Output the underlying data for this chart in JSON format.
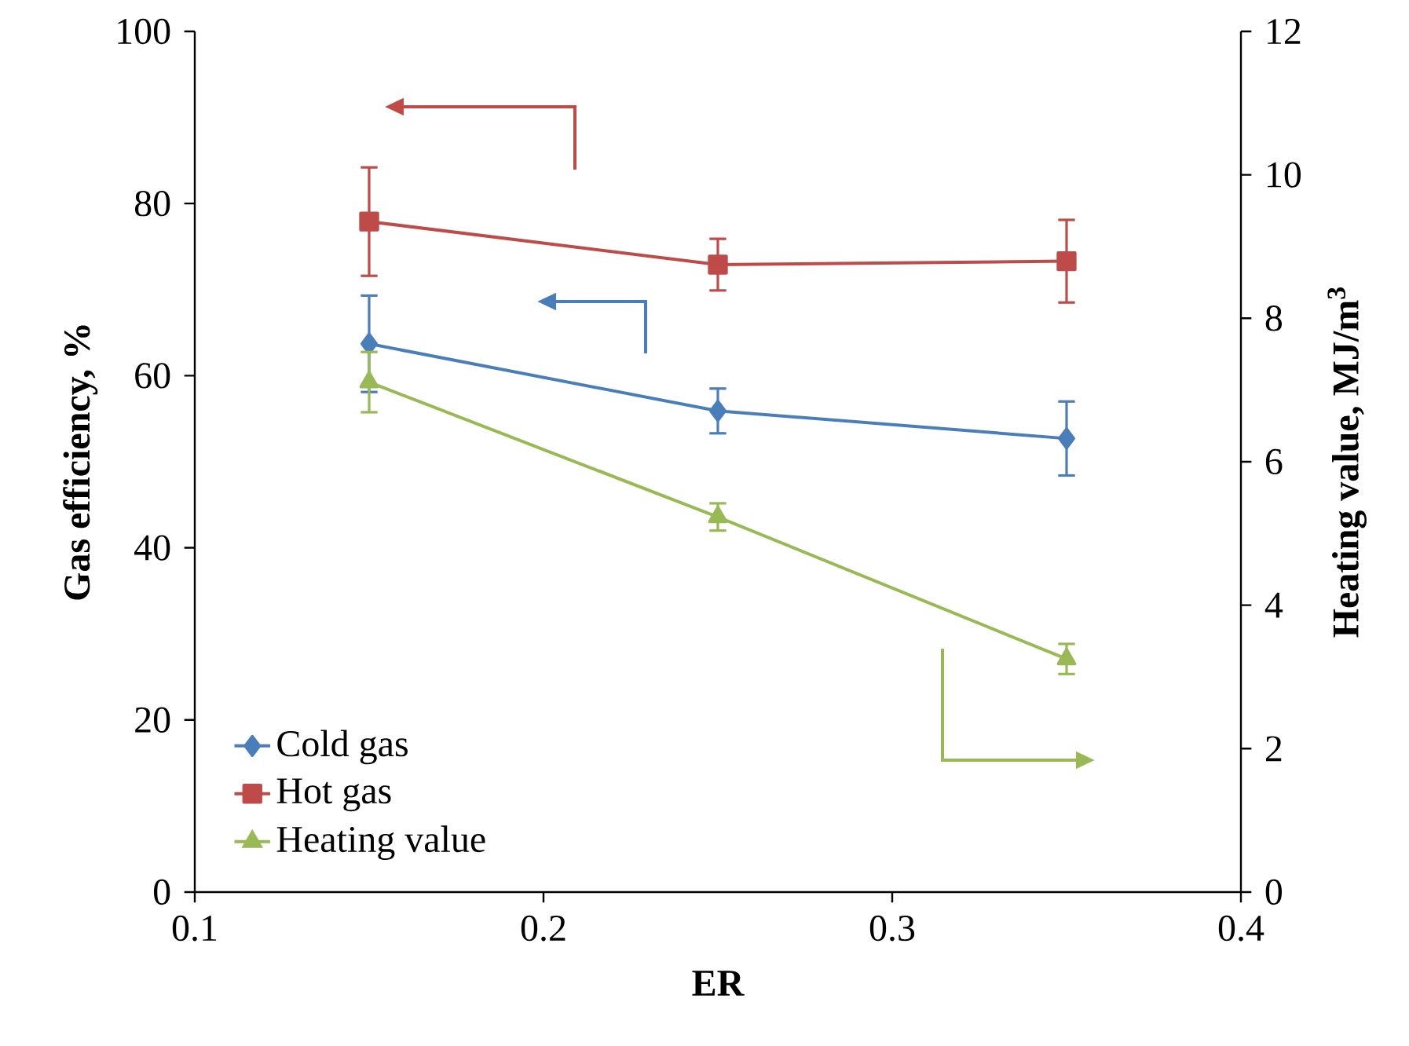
{
  "chart_data": {
    "type": "line",
    "xlabel": "ER",
    "ylabel": "Gas efficiency, %",
    "y2label": "Heating value, MJ/m$^{3}$",
    "x": [
      0.15,
      0.25,
      0.35
    ],
    "series": [
      {
        "name": "Cold gas",
        "color": "#4a7ebb",
        "marker": "diamond",
        "values": [
          63.7,
          55.9,
          52.7
        ],
        "errors": [
          5.6,
          2.6,
          4.3
        ]
      },
      {
        "name": "Hot gas",
        "color": "#be4b48",
        "marker": "square",
        "values": [
          77.9,
          72.9,
          73.3
        ],
        "errors": [
          6.3,
          3.0,
          4.8
        ]
      },
      {
        "name": "Heating value",
        "color": "#98b954",
        "marker": "triangle",
        "axis": "y2",
        "values": [
          7.11,
          5.23,
          3.25
        ],
        "errors": [
          0.42,
          0.19,
          0.21
        ]
      }
    ],
    "xlim": [
      0.1,
      0.4
    ],
    "xticks": [
      0.1,
      0.2,
      0.3,
      0.4
    ],
    "ylim": [
      0,
      100
    ],
    "yticks": [
      0,
      20,
      40,
      60,
      80,
      100
    ],
    "y2lim": [
      0,
      12
    ],
    "y2ticks": [
      0,
      2,
      4,
      6,
      8,
      10,
      12
    ],
    "legend": "bottom left"
  }
}
